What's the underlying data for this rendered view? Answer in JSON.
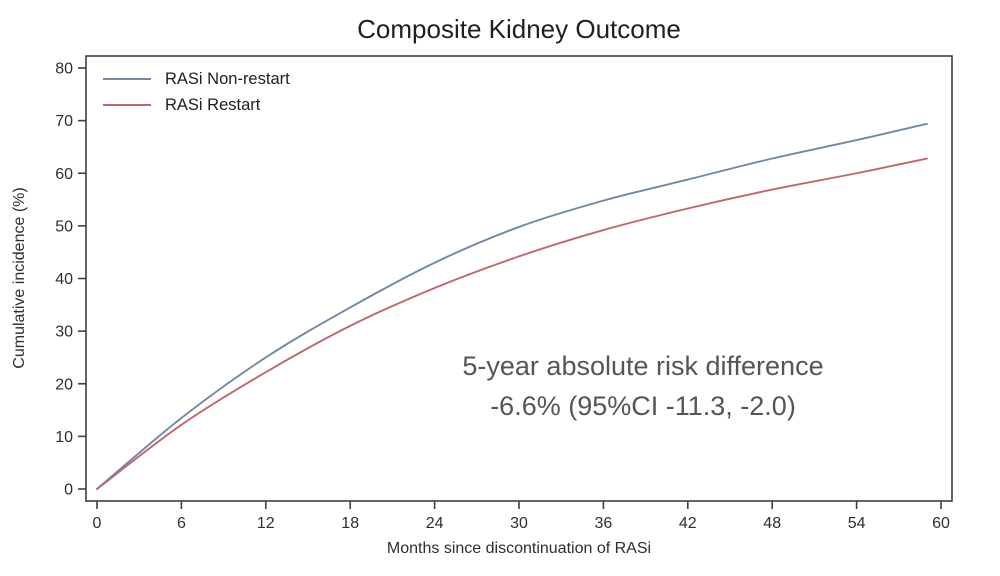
{
  "title": "Composite Kidney Outcome",
  "axes": {
    "x_label": "Months since discontinuation of RASi",
    "y_label": "Cumulative incidence (%)"
  },
  "legend": [
    {
      "label": "RASi Non-restart",
      "color": "#7089a6"
    },
    {
      "label": "RASi Restart",
      "color": "#c2666e"
    }
  ],
  "annotation": {
    "line1": "5-year absolute risk difference",
    "line2": "-6.6% (95%CI -11.3, -2.0)"
  },
  "colors": {
    "frame": "#3f3f3f",
    "tick": "#3f3f3f",
    "tick_label": "#2e2e2e",
    "annotation_text": "#555555"
  },
  "chart_data": {
    "type": "line",
    "title": "Composite Kidney Outcome",
    "xlabel": "Months since discontinuation of RASi",
    "ylabel": "Cumulative incidence (%)",
    "xlim": [
      0,
      60
    ],
    "ylim": [
      0,
      80
    ],
    "xticks": [
      0,
      6,
      12,
      18,
      24,
      30,
      36,
      42,
      48,
      54,
      60
    ],
    "yticks": [
      0,
      10,
      20,
      30,
      40,
      50,
      60,
      70,
      80
    ],
    "x": [
      0,
      6,
      12,
      18,
      24,
      30,
      36,
      42,
      48,
      54,
      59
    ],
    "series": [
      {
        "name": "RASi Non-restart",
        "color": "#7089a6",
        "values": [
          0,
          13.5,
          25.0,
          34.5,
          43.0,
          49.8,
          54.8,
          58.8,
          62.8,
          66.3,
          69.4
        ]
      },
      {
        "name": "RASi Restart",
        "color": "#c2666e",
        "values": [
          0,
          12.2,
          22.2,
          31.0,
          38.2,
          44.2,
          49.2,
          53.3,
          56.9,
          60.0,
          62.8
        ]
      }
    ],
    "legend_position": "top-left",
    "grid": false,
    "annotation": "5-year absolute risk difference -6.6% (95%CI -11.3, -2.0)"
  }
}
